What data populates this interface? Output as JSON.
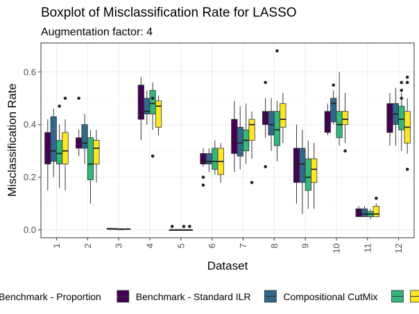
{
  "chart_data": {
    "type": "boxplot",
    "title": "Boxplot of Misclassification Rate for LASSO",
    "subtitle": "Augmentation factor: 4",
    "xlabel": "Dataset",
    "ylabel": "Misclassification Rate",
    "categories": [
      "1",
      "2",
      "3",
      "4",
      "5",
      "6",
      "7",
      "8",
      "9",
      "10",
      "11",
      "12"
    ],
    "ylim": [
      -0.03,
      0.71
    ],
    "yticks": [
      0.0,
      0.2,
      0.4,
      0.6
    ],
    "ytick_labels": [
      "0.0",
      "0.2",
      "0.4",
      "0.6"
    ],
    "grid": true,
    "legend_position": "bottom",
    "series": [
      {
        "name": "Benchmark - Proportion",
        "color": "#440154",
        "boxes": [
          {
            "min": 0.15,
            "q1": 0.25,
            "median": 0.29,
            "q3": 0.37,
            "max": 0.42,
            "outliers": []
          },
          {
            "min": 0.28,
            "q1": 0.31,
            "median": 0.34,
            "q3": 0.35,
            "max": 0.38,
            "outliers": [
              0.5
            ]
          },
          {
            "min": 0.0,
            "q1": 0.002,
            "median": 0.004,
            "q3": 0.006,
            "max": 0.008,
            "outliers": []
          },
          {
            "min": 0.34,
            "q1": 0.42,
            "median": 0.44,
            "q3": 0.55,
            "max": 0.58,
            "outliers": []
          },
          {
            "min": 0.0,
            "q1": 0.0,
            "median": 0.0,
            "q3": 0.0,
            "max": 0.0,
            "outliers": [
              0.013
            ]
          },
          {
            "min": 0.24,
            "q1": 0.25,
            "median": 0.26,
            "q3": 0.29,
            "max": 0.31,
            "outliers": [
              0.17,
              0.2
            ]
          },
          {
            "min": 0.22,
            "q1": 0.29,
            "median": 0.34,
            "q3": 0.42,
            "max": 0.49,
            "outliers": []
          },
          {
            "min": 0.35,
            "q1": 0.4,
            "median": 0.43,
            "q3": 0.45,
            "max": 0.5,
            "outliers": [
              0.56,
              0.24
            ]
          },
          {
            "min": 0.1,
            "q1": 0.18,
            "median": 0.25,
            "q3": 0.31,
            "max": 0.4,
            "outliers": []
          },
          {
            "min": 0.36,
            "q1": 0.37,
            "median": 0.4,
            "q3": 0.45,
            "max": 0.48,
            "outliers": []
          },
          {
            "min": 0.05,
            "q1": 0.05,
            "median": 0.07,
            "q3": 0.08,
            "max": 0.09,
            "outliers": []
          },
          {
            "min": 0.32,
            "q1": 0.37,
            "median": 0.44,
            "q3": 0.48,
            "max": 0.52,
            "outliers": []
          }
        ]
      },
      {
        "name": "Benchmark - Standard ILR",
        "color": "#31688e",
        "boxes": [
          {
            "min": 0.2,
            "q1": 0.26,
            "median": 0.3,
            "q3": 0.43,
            "max": 0.46,
            "outliers": []
          },
          {
            "min": 0.25,
            "q1": 0.31,
            "median": 0.33,
            "q3": 0.4,
            "max": 0.44,
            "outliers": []
          },
          {
            "min": 0.0,
            "q1": 0.002,
            "median": 0.003,
            "q3": 0.005,
            "max": 0.008,
            "outliers": []
          },
          {
            "min": 0.4,
            "q1": 0.44,
            "median": 0.45,
            "q3": 0.5,
            "max": 0.53,
            "outliers": []
          },
          {
            "min": 0.0,
            "q1": 0.0,
            "median": 0.0,
            "q3": 0.0,
            "max": 0.0,
            "outliers": []
          },
          {
            "min": 0.22,
            "q1": 0.25,
            "median": 0.26,
            "q3": 0.29,
            "max": 0.31,
            "outliers": []
          },
          {
            "min": 0.23,
            "q1": 0.28,
            "median": 0.33,
            "q3": 0.39,
            "max": 0.47,
            "outliers": []
          },
          {
            "min": 0.3,
            "q1": 0.36,
            "median": 0.4,
            "q3": 0.45,
            "max": 0.5,
            "outliers": []
          },
          {
            "min": 0.06,
            "q1": 0.18,
            "median": 0.25,
            "q3": 0.31,
            "max": 0.38,
            "outliers": []
          },
          {
            "min": 0.4,
            "q1": 0.41,
            "median": 0.48,
            "q3": 0.5,
            "max": 0.53,
            "outliers": [
              0.55
            ]
          },
          {
            "min": 0.05,
            "q1": 0.05,
            "median": 0.06,
            "q3": 0.08,
            "max": 0.09,
            "outliers": []
          },
          {
            "min": 0.32,
            "q1": 0.4,
            "median": 0.44,
            "q3": 0.48,
            "max": 0.54,
            "outliers": []
          }
        ]
      },
      {
        "name": "Compositional CutMix",
        "color": "#35b779",
        "boxes": [
          {
            "min": 0.16,
            "q1": 0.25,
            "median": 0.29,
            "q3": 0.34,
            "max": 0.4,
            "outliers": [
              0.47
            ]
          },
          {
            "min": 0.1,
            "q1": 0.19,
            "median": 0.25,
            "q3": 0.35,
            "max": 0.38,
            "outliers": []
          },
          {
            "min": 0.0,
            "q1": 0.001,
            "median": 0.002,
            "q3": 0.004,
            "max": 0.007,
            "outliers": []
          },
          {
            "min": 0.38,
            "q1": 0.44,
            "median": 0.48,
            "q3": 0.53,
            "max": 0.56,
            "outliers": [
              0.5,
              0.28
            ]
          },
          {
            "min": 0.0,
            "q1": 0.0,
            "median": 0.0,
            "q3": 0.0,
            "max": 0.0,
            "outliers": [
              0.013
            ]
          },
          {
            "min": 0.21,
            "q1": 0.23,
            "median": 0.26,
            "q3": 0.31,
            "max": 0.34,
            "outliers": []
          },
          {
            "min": 0.25,
            "q1": 0.3,
            "median": 0.34,
            "q3": 0.38,
            "max": 0.48,
            "outliers": []
          },
          {
            "min": 0.26,
            "q1": 0.32,
            "median": 0.38,
            "q3": 0.45,
            "max": 0.49,
            "outliers": [
              0.68
            ]
          },
          {
            "min": 0.08,
            "q1": 0.15,
            "median": 0.2,
            "q3": 0.27,
            "max": 0.34,
            "outliers": []
          },
          {
            "min": 0.32,
            "q1": 0.35,
            "median": 0.4,
            "q3": 0.45,
            "max": 0.6,
            "outliers": []
          },
          {
            "min": 0.04,
            "q1": 0.05,
            "median": 0.06,
            "q3": 0.07,
            "max": 0.08,
            "outliers": []
          },
          {
            "min": 0.3,
            "q1": 0.38,
            "median": 0.42,
            "q3": 0.47,
            "max": 0.52,
            "outliers": [
              0.5,
              0.53,
              0.56
            ]
          }
        ]
      },
      {
        "name": "",
        "color": "#fde725",
        "boxes": [
          {
            "min": 0.15,
            "q1": 0.25,
            "median": 0.3,
            "q3": 0.37,
            "max": 0.42,
            "outliers": [
              0.5
            ]
          },
          {
            "min": 0.18,
            "q1": 0.25,
            "median": 0.31,
            "q3": 0.34,
            "max": 0.38,
            "outliers": []
          },
          {
            "min": 0.0,
            "q1": 0.002,
            "median": 0.003,
            "q3": 0.004,
            "max": 0.006,
            "outliers": []
          },
          {
            "min": 0.36,
            "q1": 0.39,
            "median": 0.47,
            "q3": 0.49,
            "max": 0.51,
            "outliers": []
          },
          {
            "min": 0.0,
            "q1": 0.0,
            "median": 0.0,
            "q3": 0.0,
            "max": 0.0,
            "outliers": [
              0.013
            ]
          },
          {
            "min": 0.18,
            "q1": 0.21,
            "median": 0.26,
            "q3": 0.31,
            "max": 0.33,
            "outliers": []
          },
          {
            "min": 0.27,
            "q1": 0.34,
            "median": 0.4,
            "q3": 0.42,
            "max": 0.45,
            "outliers": [
              0.18
            ]
          },
          {
            "min": 0.33,
            "q1": 0.39,
            "median": 0.42,
            "q3": 0.48,
            "max": 0.52,
            "outliers": []
          },
          {
            "min": 0.08,
            "q1": 0.18,
            "median": 0.23,
            "q3": 0.27,
            "max": 0.33,
            "outliers": []
          },
          {
            "min": 0.33,
            "q1": 0.4,
            "median": 0.42,
            "q3": 0.45,
            "max": 0.52,
            "outliers": [
              0.3
            ]
          },
          {
            "min": 0.05,
            "q1": 0.05,
            "median": 0.06,
            "q3": 0.09,
            "max": 0.1,
            "outliers": [
              0.12
            ]
          },
          {
            "min": 0.29,
            "q1": 0.33,
            "median": 0.39,
            "q3": 0.45,
            "max": 0.5,
            "outliers": [
              0.58,
              0.56,
              0.23
            ]
          }
        ]
      }
    ]
  }
}
